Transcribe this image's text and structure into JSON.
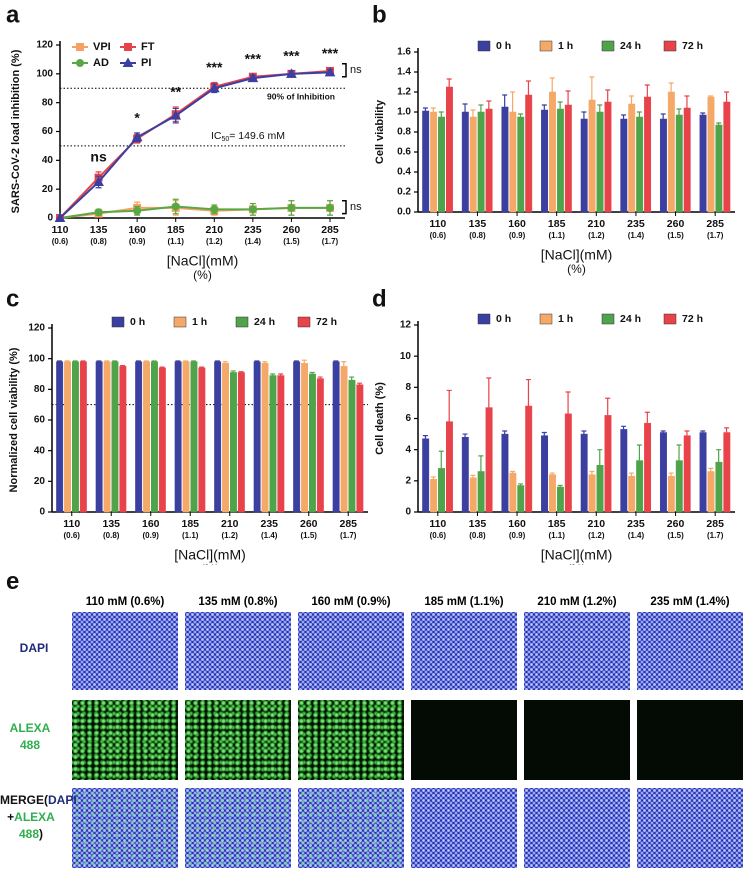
{
  "chart_data": [
    {
      "type": "line",
      "panel_label": "a",
      "ylabel": "SARS-CoV-2 load inhibition (%)",
      "xlabel": "[NaCl](mM)",
      "xlabel_unit": "(%)",
      "categories": [
        "110",
        "135",
        "160",
        "185",
        "210",
        "235",
        "260",
        "285"
      ],
      "category_sublabels": [
        "(0.6)",
        "(0.8)",
        "(0.9)",
        "(1.1)",
        "(1.2)",
        "(1.4)",
        "(1.5)",
        "(1.7)"
      ],
      "ylim": [
        0,
        120
      ],
      "yticks": [
        0,
        20,
        40,
        60,
        80,
        100,
        120
      ],
      "series": [
        {
          "name": "VPI",
          "color": "#f4a261",
          "marker": "square",
          "values": [
            0,
            3,
            7,
            7,
            5,
            6,
            7,
            7
          ],
          "errors": [
            0,
            2,
            4,
            5,
            3,
            4,
            5,
            5
          ]
        },
        {
          "name": "AD",
          "color": "#5aa845",
          "marker": "circle",
          "values": [
            0,
            4,
            5,
            8,
            6,
            6,
            7,
            7
          ],
          "errors": [
            0,
            2,
            3,
            5,
            3,
            4,
            5,
            5
          ]
        },
        {
          "name": "FT",
          "color": "#e8434b",
          "marker": "square",
          "values": [
            0,
            28,
            55,
            72,
            91,
            98,
            100,
            102
          ],
          "errors": [
            0,
            4,
            3,
            5,
            3,
            2,
            2,
            2
          ]
        },
        {
          "name": "PI",
          "color": "#3b3fa0",
          "marker": "triangle",
          "values": [
            0,
            25,
            56,
            71,
            90,
            97,
            100,
            101
          ],
          "errors": [
            0,
            4,
            3,
            5,
            3,
            2,
            2,
            2
          ]
        }
      ],
      "significance_labels": [
        null,
        "ns",
        "*",
        "**",
        "***",
        "***",
        "***",
        "***"
      ],
      "bracket_labels": [
        "ns",
        "ns"
      ],
      "reference_lines": [
        {
          "value": 90,
          "label": "90% of Inhibition"
        },
        {
          "value": 50,
          "label": "IC",
          "label_sub": "50",
          "label_rest": "= 149.6 mM"
        }
      ]
    },
    {
      "type": "bar",
      "panel_label": "b",
      "ylabel": "Cell viability",
      "xlabel": "[NaCl](mM)",
      "xlabel_unit": "(%)",
      "categories": [
        "110",
        "135",
        "160",
        "185",
        "210",
        "235",
        "260",
        "285"
      ],
      "category_sublabels": [
        "(0.6)",
        "(0.8)",
        "(0.9)",
        "(1.1)",
        "(1.2)",
        "(1.4)",
        "(1.5)",
        "(1.7)"
      ],
      "ylim": [
        0,
        1.6
      ],
      "yticks": [
        {
          "value": 0,
          "label": "0.0"
        },
        0.2,
        0.4,
        0.6,
        0.8,
        {
          "value": 1,
          "label": "1.0"
        },
        1.2,
        1.4,
        1.6
      ],
      "series": [
        {
          "name": "0 h",
          "color": "#3b3fa0",
          "values": [
            1.01,
            1.0,
            1.05,
            1.02,
            0.93,
            0.93,
            0.93,
            0.97
          ],
          "errors": [
            0.03,
            0.08,
            0.12,
            0.05,
            0.07,
            0.04,
            0.05,
            0.02
          ]
        },
        {
          "name": "1 h",
          "color": "#f5a968",
          "values": [
            1.0,
            0.95,
            1.0,
            1.2,
            1.12,
            1.08,
            1.2,
            1.15
          ],
          "errors": [
            0.04,
            0.07,
            0.2,
            0.14,
            0.23,
            0.08,
            0.09,
            0.01
          ]
        },
        {
          "name": "24 h",
          "color": "#4fa34b",
          "values": [
            0.95,
            1.0,
            0.95,
            1.03,
            1.0,
            0.95,
            0.97,
            0.87
          ],
          "errors": [
            0.05,
            0.07,
            0.03,
            0.07,
            0.07,
            0.05,
            0.06,
            0.02
          ]
        },
        {
          "name": "72 h",
          "color": "#e8434b",
          "values": [
            1.25,
            1.03,
            1.17,
            1.07,
            1.1,
            1.15,
            1.04,
            1.1
          ],
          "errors": [
            0.08,
            0.08,
            0.14,
            0.14,
            0.12,
            0.12,
            0.12,
            0.1
          ]
        }
      ]
    },
    {
      "type": "bar",
      "panel_label": "c",
      "ylabel": "Normalized cell viability (%)",
      "xlabel": "[NaCl](mM)",
      "xlabel_unit": "(%)",
      "categories": [
        "110",
        "135",
        "160",
        "185",
        "210",
        "235",
        "260",
        "285"
      ],
      "category_sublabels": [
        "(0.6)",
        "(0.8)",
        "(0.9)",
        "(1.1)",
        "(1.2)",
        "(1.4)",
        "(1.5)",
        "(1.7)"
      ],
      "ylim": [
        0,
        120
      ],
      "yticks": [
        0,
        20,
        40,
        60,
        80,
        100,
        120
      ],
      "reference_lines": [
        {
          "value": 70
        }
      ],
      "series": [
        {
          "name": "0 h",
          "color": "#3b3fa0",
          "values": [
            98,
            98,
            98,
            98,
            98,
            98,
            98,
            98
          ],
          "errors": [
            0.5,
            0.5,
            0.5,
            0.5,
            0.5,
            0.5,
            0.5,
            0.5
          ]
        },
        {
          "name": "1 h",
          "color": "#f5a968",
          "values": [
            98,
            98,
            98,
            98,
            97,
            97,
            97,
            95
          ],
          "errors": [
            0.5,
            0.5,
            0.5,
            0.5,
            1,
            1,
            2,
            3
          ]
        },
        {
          "name": "24 h",
          "color": "#4fa34b",
          "values": [
            98,
            98,
            98,
            98,
            91,
            89,
            90,
            86
          ],
          "errors": [
            0.5,
            0.5,
            0.5,
            0.5,
            1,
            1,
            1,
            2
          ]
        },
        {
          "name": "72 h",
          "color": "#e8434b",
          "values": [
            98,
            95,
            94,
            94,
            91,
            89,
            87,
            83
          ],
          "errors": [
            0.5,
            0.5,
            0.5,
            0.5,
            0.5,
            1,
            1,
            1
          ]
        }
      ]
    },
    {
      "type": "bar",
      "panel_label": "d",
      "ylabel": "Cell death (%)",
      "xlabel": "[NaCl](mM)",
      "xlabel_unit": "(%)",
      "categories": [
        "110",
        "135",
        "160",
        "185",
        "210",
        "235",
        "260",
        "285"
      ],
      "category_sublabels": [
        "(0.6)",
        "(0.8)",
        "(0.9)",
        "(1.1)",
        "(1.2)",
        "(1.4)",
        "(1.5)",
        "(1.7)"
      ],
      "ylim": [
        0,
        12
      ],
      "yticks": [
        0,
        2,
        4,
        6,
        8,
        10,
        12
      ],
      "series": [
        {
          "name": "0 h",
          "color": "#3b3fa0",
          "values": [
            4.7,
            4.8,
            5.0,
            4.9,
            5.0,
            5.3,
            5.1,
            5.1
          ],
          "errors": [
            0.2,
            0.2,
            0.2,
            0.2,
            0.2,
            0.2,
            0.1,
            0.1
          ]
        },
        {
          "name": "1 h",
          "color": "#f5a968",
          "values": [
            2.1,
            2.2,
            2.5,
            2.4,
            2.4,
            2.3,
            2.3,
            2.6
          ],
          "errors": [
            0.15,
            0.15,
            0.1,
            0.1,
            0.2,
            0.2,
            0.2,
            0.2
          ]
        },
        {
          "name": "24 h",
          "color": "#4fa34b",
          "values": [
            2.8,
            2.6,
            1.7,
            1.6,
            3.0,
            3.3,
            3.3,
            3.2
          ],
          "errors": [
            1.1,
            1.0,
            0.1,
            0.1,
            1.0,
            1.0,
            1.0,
            0.8
          ]
        },
        {
          "name": "72 h",
          "color": "#e8434b",
          "values": [
            5.8,
            6.7,
            6.8,
            6.3,
            6.2,
            5.7,
            4.9,
            5.1
          ],
          "errors": [
            2.0,
            1.9,
            1.7,
            1.4,
            1.1,
            0.7,
            0.3,
            0.3
          ]
        }
      ]
    }
  ],
  "panel_e": {
    "panel_label": "e",
    "columns": [
      "110 mM (0.6%)",
      "135 mM (0.8%)",
      "160 mM (0.9%)",
      "185 mM (1.1%)",
      "210 mM (1.2%)",
      "235 mM (1.4%)"
    ],
    "rows": [
      {
        "label": "DAPI"
      },
      {
        "label": "ALEXA 488"
      },
      {
        "label": "MERGE",
        "parts": [
          "(",
          "DAPI",
          " +",
          "ALEXA 488",
          ")"
        ]
      }
    ]
  }
}
